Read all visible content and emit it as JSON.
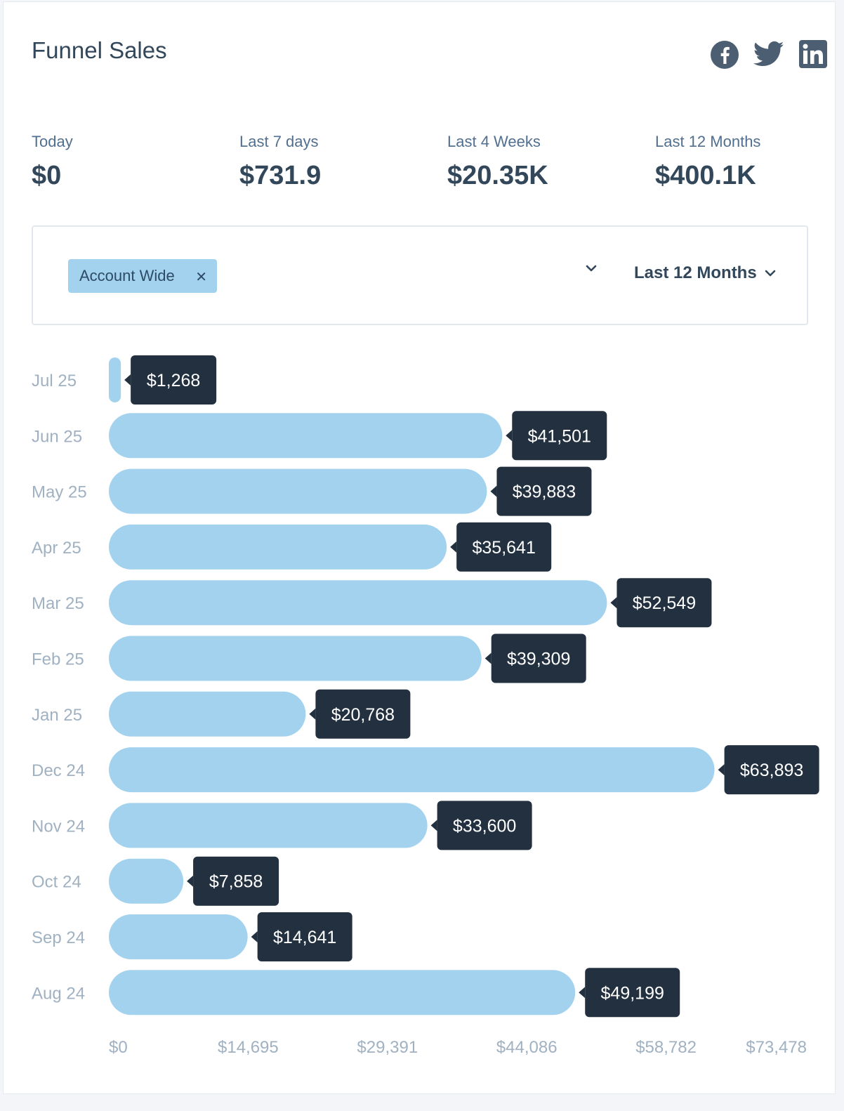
{
  "header": {
    "title": "Funnel Sales",
    "social": [
      "facebook-icon",
      "twitter-icon",
      "linkedin-icon"
    ]
  },
  "stats": [
    {
      "label": "Today",
      "value": "$0"
    },
    {
      "label": "Last 7 days",
      "value": "$731.9"
    },
    {
      "label": "Last 4 Weeks",
      "value": "$20.35K"
    },
    {
      "label": "Last 12 Months",
      "value": "$400.1K"
    }
  ],
  "filters": {
    "tag_label": "Account Wide",
    "period_label": "Last 12 Months"
  },
  "colors": {
    "bar": "#a3d2ef",
    "label_bg": "#22303f",
    "text_dark": "#33475b",
    "text_muted": "#a0b1c2"
  },
  "chart_data": {
    "type": "bar",
    "orientation": "horizontal",
    "categories": [
      "Jul 25",
      "Jun 25",
      "May 25",
      "Apr 25",
      "Mar 25",
      "Feb 25",
      "Jan 25",
      "Dec 24",
      "Nov 24",
      "Oct 24",
      "Sep 24",
      "Aug 24"
    ],
    "values": [
      1268,
      41501,
      39883,
      35641,
      52549,
      39309,
      20768,
      63893,
      33600,
      7858,
      14641,
      49199
    ],
    "value_labels": [
      "$1,268",
      "$41,501",
      "$39,883",
      "$35,641",
      "$52,549",
      "$39,309",
      "$20,768",
      "$63,893",
      "$33,600",
      "$7,858",
      "$14,641",
      "$49,199"
    ],
    "x_ticks": [
      0,
      14695,
      29391,
      44086,
      58782,
      73478
    ],
    "x_tick_labels": [
      "$0",
      "$14,695",
      "$29,391",
      "$44,086",
      "$58,782",
      "$73,478"
    ],
    "xlim": [
      0,
      73478
    ],
    "grid": false,
    "legend": "none"
  }
}
